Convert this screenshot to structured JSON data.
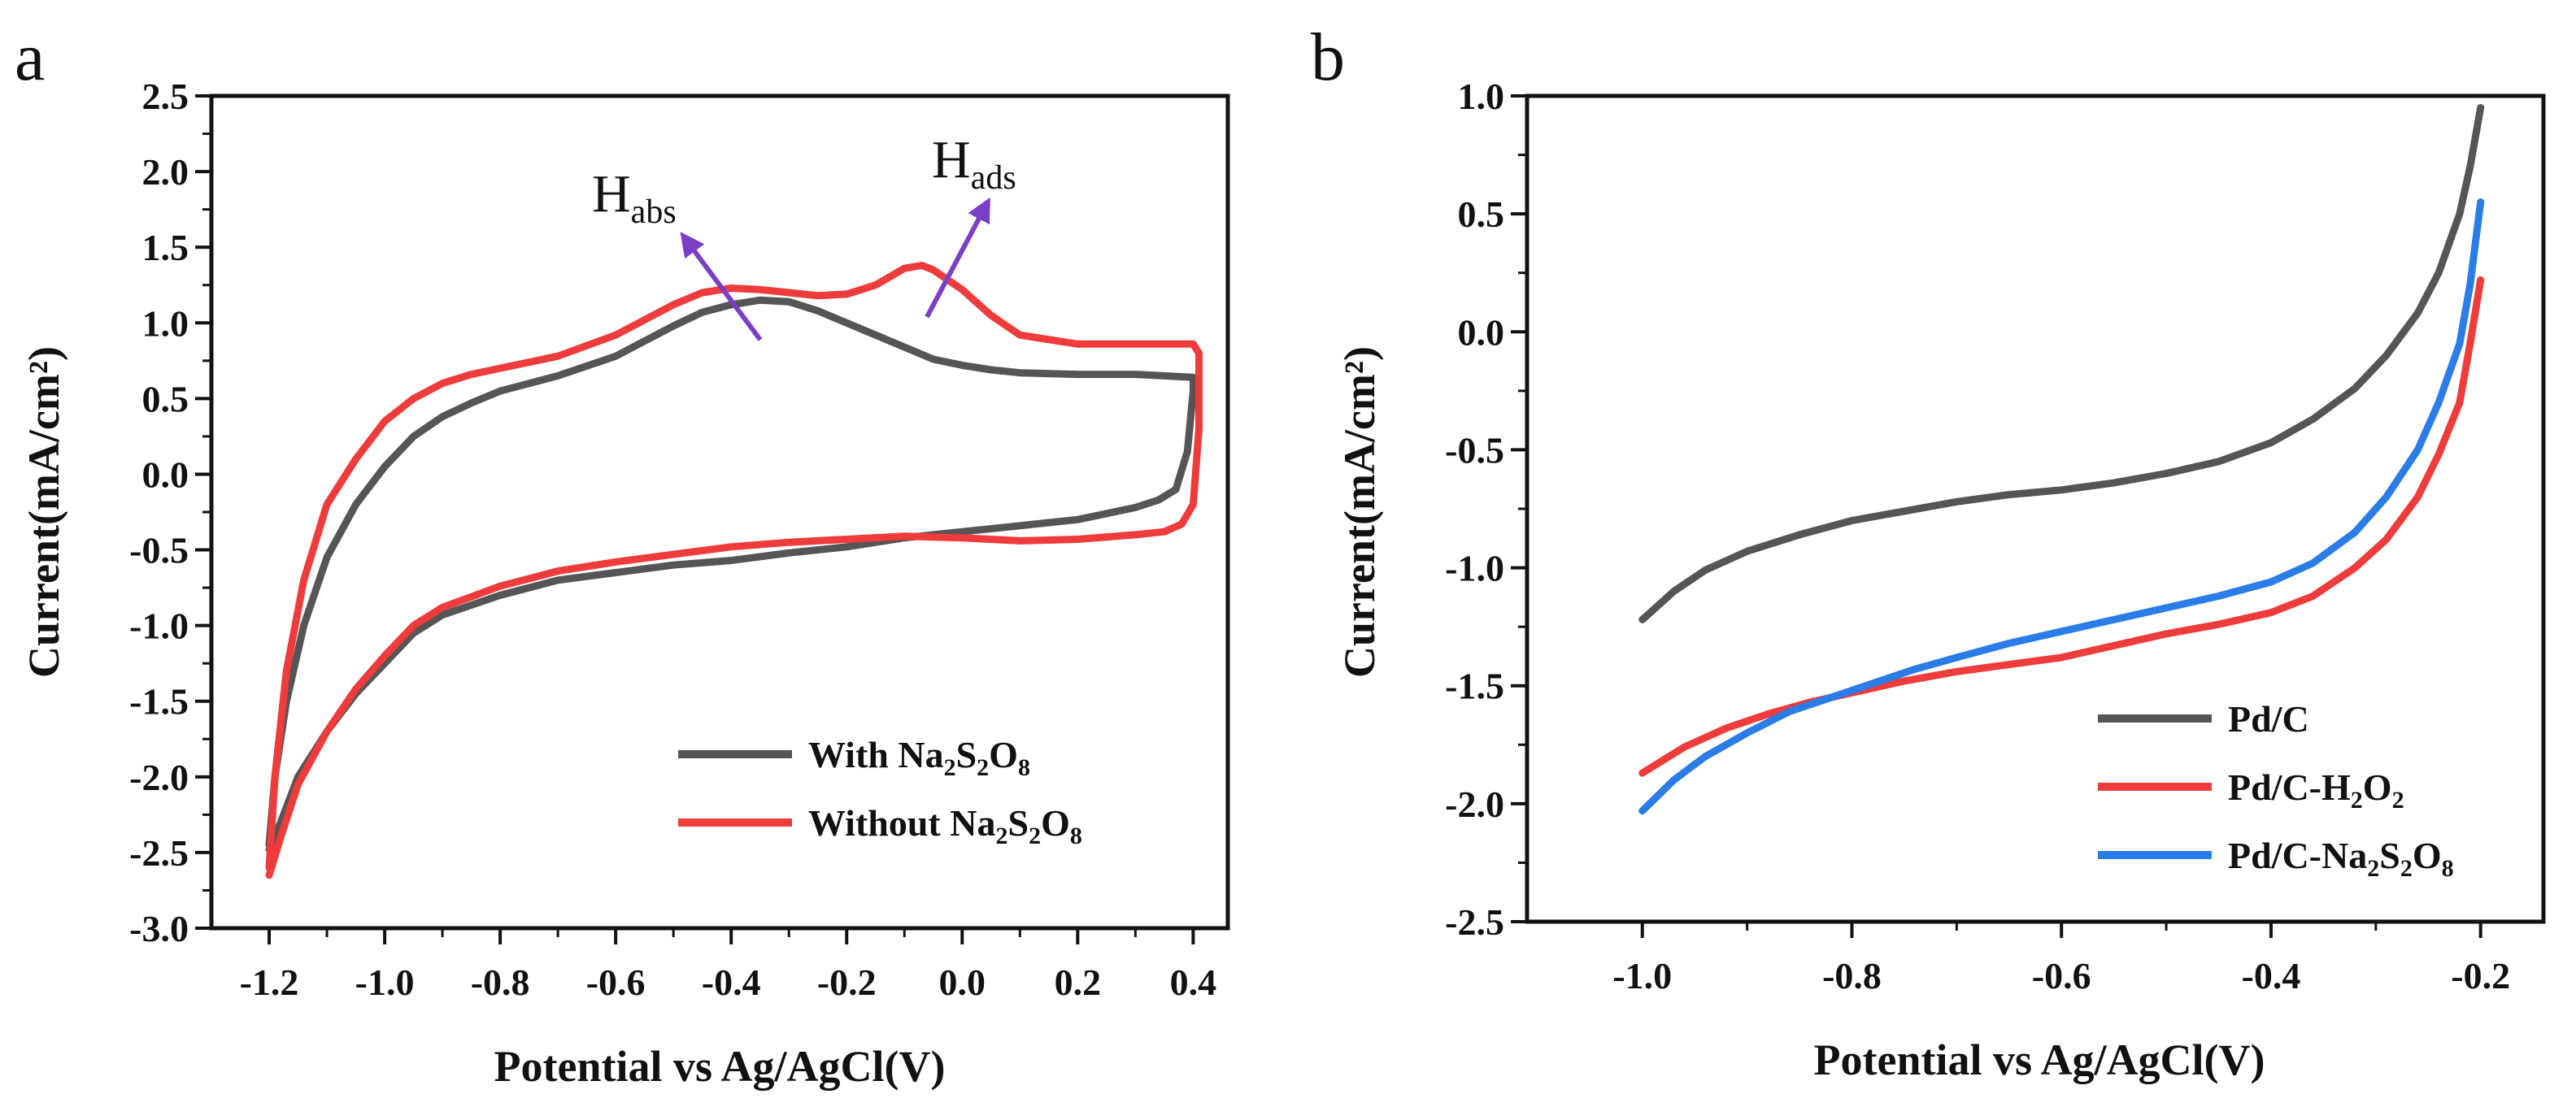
{
  "panels": [
    {
      "id": "a",
      "label": "a",
      "xlabel": "Potential vs Ag/AgCl(V)",
      "ylabel": "Current(mA/cm²)",
      "xlim": [
        -1.3,
        0.46
      ],
      "ylim": [
        -3.0,
        2.5
      ],
      "xticks": [
        "-1.2",
        "-1.0",
        "-0.8",
        "-0.6",
        "-0.4",
        "-0.2",
        "0.0",
        "0.2",
        "0.4"
      ],
      "yticks": [
        "2.5",
        "2.0",
        "1.5",
        "1.0",
        "0.5",
        "0.0",
        "-0.5",
        "-1.0",
        "-1.5",
        "-2.0",
        "-2.5",
        "-3.0"
      ],
      "annotations": [
        {
          "base": "H",
          "sub": "abs"
        },
        {
          "base": "H",
          "sub": "ads"
        }
      ],
      "legend": [
        {
          "text": "With Na",
          "sub1": "2",
          "mid": "S",
          "sub2": "2",
          "mid2": "O",
          "sub3": "8"
        },
        {
          "text": "Without Na",
          "sub1": "2",
          "mid": "S",
          "sub2": "2",
          "mid2": "O",
          "sub3": "8"
        }
      ]
    },
    {
      "id": "b",
      "label": "b",
      "xlabel": "Potential vs Ag/AgCl(V)",
      "ylabel": "Current(mA/cm²)",
      "xlim": [
        -1.11,
        -0.14
      ],
      "ylim": [
        -2.5,
        1.0
      ],
      "xticks": [
        "-1.0",
        "-0.8",
        "-0.6",
        "-0.4",
        "-0.2"
      ],
      "yticks": [
        "1.0",
        "0.5",
        "0.0",
        "-0.5",
        "-1.0",
        "-1.5",
        "-2.0",
        "-2.5"
      ],
      "legend": [
        {
          "text": "Pd/C"
        },
        {
          "text": "Pd/C-H",
          "sub1": "2",
          "mid": "O",
          "sub2": "2"
        },
        {
          "text": "Pd/C-Na",
          "sub1": "2",
          "mid": "S",
          "sub2": "2",
          "mid2": "O",
          "sub3": "8"
        }
      ]
    }
  ],
  "chart_data": [
    {
      "type": "line",
      "panel": "a",
      "x_unit": "V",
      "y_unit": "mA/cm2",
      "xlim": [
        -1.3,
        0.46
      ],
      "ylim": [
        -3.0,
        2.5
      ],
      "series": [
        {
          "name": "With Na2S2O8",
          "color": "#555555",
          "x": [
            -1.2,
            -1.19,
            -1.17,
            -1.14,
            -1.1,
            -1.05,
            -1.0,
            -0.95,
            -0.9,
            -0.85,
            -0.8,
            -0.7,
            -0.6,
            -0.5,
            -0.45,
            -0.4,
            -0.35,
            -0.3,
            -0.25,
            -0.2,
            -0.15,
            -0.1,
            -0.05,
            0.0,
            0.05,
            0.1,
            0.2,
            0.3,
            0.4,
            0.4,
            0.39,
            0.37,
            0.34,
            0.3,
            0.2,
            0.1,
            0.0,
            -0.1,
            -0.2,
            -0.3,
            -0.4,
            -0.5,
            -0.6,
            -0.7,
            -0.8,
            -0.9,
            -0.95,
            -1.0,
            -1.05,
            -1.1,
            -1.15,
            -1.18,
            -1.2
          ],
          "y": [
            -2.45,
            -2.0,
            -1.5,
            -1.0,
            -0.55,
            -0.2,
            0.05,
            0.25,
            0.38,
            0.47,
            0.55,
            0.65,
            0.78,
            0.98,
            1.07,
            1.12,
            1.15,
            1.14,
            1.08,
            1.0,
            0.92,
            0.84,
            0.76,
            0.72,
            0.69,
            0.67,
            0.66,
            0.66,
            0.64,
            0.55,
            0.15,
            -0.1,
            -0.17,
            -0.22,
            -0.3,
            -0.34,
            -0.38,
            -0.42,
            -0.48,
            -0.52,
            -0.57,
            -0.6,
            -0.65,
            -0.7,
            -0.8,
            -0.93,
            -1.05,
            -1.25,
            -1.45,
            -1.7,
            -2.0,
            -2.3,
            -2.48
          ]
        },
        {
          "name": "Without Na2S2O8",
          "color": "#ee3b3b",
          "x": [
            -1.2,
            -1.19,
            -1.17,
            -1.14,
            -1.1,
            -1.05,
            -1.0,
            -0.95,
            -0.9,
            -0.85,
            -0.8,
            -0.7,
            -0.6,
            -0.5,
            -0.45,
            -0.4,
            -0.35,
            -0.3,
            -0.25,
            -0.2,
            -0.15,
            -0.1,
            -0.07,
            -0.05,
            0.0,
            0.05,
            0.1,
            0.2,
            0.3,
            0.4,
            0.41,
            0.41,
            0.4,
            0.38,
            0.35,
            0.3,
            0.2,
            0.1,
            0.0,
            -0.1,
            -0.2,
            -0.3,
            -0.4,
            -0.5,
            -0.6,
            -0.7,
            -0.8,
            -0.9,
            -0.95,
            -1.0,
            -1.05,
            -1.1,
            -1.15,
            -1.18,
            -1.2
          ],
          "y": [
            -2.6,
            -2.0,
            -1.3,
            -0.7,
            -0.2,
            0.1,
            0.35,
            0.5,
            0.6,
            0.66,
            0.7,
            0.78,
            0.92,
            1.12,
            1.2,
            1.23,
            1.22,
            1.2,
            1.18,
            1.19,
            1.25,
            1.36,
            1.38,
            1.35,
            1.22,
            1.05,
            0.92,
            0.86,
            0.86,
            0.86,
            0.8,
            0.3,
            -0.2,
            -0.33,
            -0.38,
            -0.4,
            -0.43,
            -0.44,
            -0.42,
            -0.41,
            -0.43,
            -0.45,
            -0.48,
            -0.53,
            -0.58,
            -0.64,
            -0.74,
            -0.88,
            -1.0,
            -1.2,
            -1.42,
            -1.7,
            -2.05,
            -2.4,
            -2.65
          ]
        }
      ]
    },
    {
      "type": "line",
      "panel": "b",
      "x_unit": "V",
      "y_unit": "mA/cm2",
      "xlim": [
        -1.11,
        -0.14
      ],
      "ylim": [
        -2.5,
        1.0
      ],
      "series": [
        {
          "name": "Pd/C",
          "color": "#555555",
          "x": [
            -1.0,
            -0.97,
            -0.94,
            -0.9,
            -0.85,
            -0.8,
            -0.75,
            -0.7,
            -0.65,
            -0.6,
            -0.55,
            -0.5,
            -0.45,
            -0.4,
            -0.36,
            -0.32,
            -0.29,
            -0.26,
            -0.24,
            -0.22,
            -0.21,
            -0.2
          ],
          "y": [
            -1.22,
            -1.1,
            -1.01,
            -0.93,
            -0.86,
            -0.8,
            -0.76,
            -0.72,
            -0.69,
            -0.67,
            -0.64,
            -0.6,
            -0.55,
            -0.47,
            -0.37,
            -0.24,
            -0.1,
            0.08,
            0.25,
            0.5,
            0.7,
            0.95
          ]
        },
        {
          "name": "Pd/C-H2O2",
          "color": "#ee3b3b",
          "x": [
            -1.0,
            -0.96,
            -0.92,
            -0.88,
            -0.84,
            -0.8,
            -0.75,
            -0.7,
            -0.65,
            -0.6,
            -0.55,
            -0.5,
            -0.45,
            -0.4,
            -0.36,
            -0.32,
            -0.29,
            -0.26,
            -0.24,
            -0.22,
            -0.21,
            -0.2
          ],
          "y": [
            -1.87,
            -1.76,
            -1.68,
            -1.62,
            -1.57,
            -1.53,
            -1.48,
            -1.44,
            -1.41,
            -1.38,
            -1.33,
            -1.28,
            -1.24,
            -1.19,
            -1.12,
            -1.0,
            -0.88,
            -0.7,
            -0.52,
            -0.3,
            -0.05,
            0.22
          ]
        },
        {
          "name": "Pd/C-Na2S2O8",
          "color": "#2a7ce6",
          "x": [
            -1.0,
            -0.97,
            -0.94,
            -0.9,
            -0.86,
            -0.82,
            -0.78,
            -0.74,
            -0.7,
            -0.65,
            -0.6,
            -0.55,
            -0.5,
            -0.45,
            -0.4,
            -0.36,
            -0.32,
            -0.29,
            -0.26,
            -0.24,
            -0.22,
            -0.21,
            -0.2
          ],
          "y": [
            -2.03,
            -1.9,
            -1.8,
            -1.7,
            -1.61,
            -1.55,
            -1.49,
            -1.43,
            -1.38,
            -1.32,
            -1.27,
            -1.22,
            -1.17,
            -1.12,
            -1.06,
            -0.98,
            -0.85,
            -0.7,
            -0.5,
            -0.3,
            -0.05,
            0.2,
            0.55
          ]
        }
      ]
    }
  ]
}
